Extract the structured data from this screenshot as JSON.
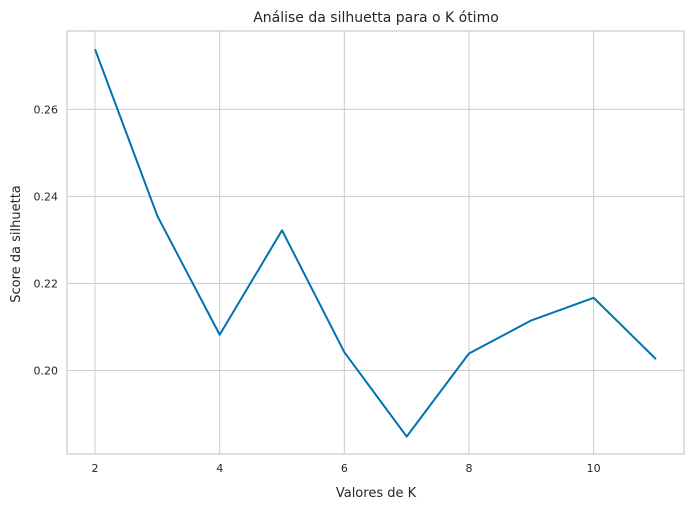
{
  "chart_data": {
    "type": "line",
    "title": "Análise da silhuetta para o K ótimo",
    "xlabel": "Valores de K",
    "ylabel": "Score da silhuetta",
    "x": [
      2,
      3,
      4,
      5,
      6,
      7,
      8,
      9,
      10,
      11
    ],
    "series": [
      {
        "values": [
          0.2738,
          0.2355,
          0.2082,
          0.2322,
          0.2042,
          0.1848,
          0.2039,
          0.2115,
          0.2167,
          0.2026
        ],
        "color": "#0072b2"
      }
    ],
    "xlim": [
      1.55,
      11.45
    ],
    "ylim": [
      0.1808,
      0.278
    ],
    "xticks": [
      2,
      4,
      6,
      8,
      10
    ],
    "yticks": [
      0.2,
      0.22,
      0.24,
      0.26
    ],
    "xtick_labels": [
      "2",
      "4",
      "6",
      "8",
      "10"
    ],
    "ytick_labels": [
      "0.20",
      "0.22",
      "0.24",
      "0.26"
    ],
    "grid": true
  }
}
